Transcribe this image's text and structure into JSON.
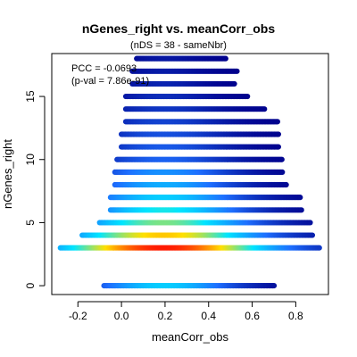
{
  "chart_data": {
    "type": "scatter",
    "title": "nGenes_right vs. meanCorr_obs",
    "subtitle": "(nDS = 38 - sameNbr)",
    "xlabel": "meanCorr_obs",
    "ylabel": "nGenes_right",
    "xlim": [
      -0.32,
      0.95
    ],
    "ylim": [
      -0.7,
      18.4
    ],
    "xticks": [
      -0.2,
      0.0,
      0.2,
      0.4,
      0.6,
      0.8
    ],
    "xtick_labels": [
      "-0.2",
      "0.0",
      "0.2",
      "0.4",
      "0.6",
      "0.8"
    ],
    "yticks": [
      0,
      5,
      10,
      15
    ],
    "ytick_labels": [
      "0",
      "5",
      "10",
      "15"
    ],
    "grid": false,
    "legend": "none",
    "color_scale": "density (blue → cyan → yellow → red)",
    "annotation_lines": [
      "PCC = -0.0693",
      "(p-val = 7.86e-91)"
    ],
    "rows": [
      {
        "y": 0,
        "x_min": -0.08,
        "x_max": 0.7,
        "peak": 0.45
      },
      {
        "y": 3,
        "x_min": -0.28,
        "x_max": 0.91,
        "peak": 1.0
      },
      {
        "y": 4,
        "x_min": -0.18,
        "x_max": 0.88,
        "peak": 0.78
      },
      {
        "y": 5,
        "x_min": -0.1,
        "x_max": 0.87,
        "peak": 0.62
      },
      {
        "y": 6,
        "x_min": -0.05,
        "x_max": 0.83,
        "peak": 0.52
      },
      {
        "y": 7,
        "x_min": -0.05,
        "x_max": 0.82,
        "peak": 0.45
      },
      {
        "y": 8,
        "x_min": -0.03,
        "x_max": 0.76,
        "peak": 0.38
      },
      {
        "y": 9,
        "x_min": -0.03,
        "x_max": 0.74,
        "peak": 0.32
      },
      {
        "y": 10,
        "x_min": -0.02,
        "x_max": 0.74,
        "peak": 0.22
      },
      {
        "y": 11,
        "x_min": 0.0,
        "x_max": 0.72,
        "peak": 0.2
      },
      {
        "y": 12,
        "x_min": 0.0,
        "x_max": 0.72,
        "peak": 0.18
      },
      {
        "y": 13,
        "x_min": 0.02,
        "x_max": 0.72,
        "peak": 0.15
      },
      {
        "y": 14,
        "x_min": 0.02,
        "x_max": 0.66,
        "peak": 0.12
      },
      {
        "y": 15,
        "x_min": 0.02,
        "x_max": 0.58,
        "peak": 0.1
      },
      {
        "y": 16,
        "x_min": 0.05,
        "x_max": 0.52,
        "peak": 0.08
      },
      {
        "y": 17,
        "x_min": 0.05,
        "x_max": 0.53,
        "peak": 0.06
      },
      {
        "y": 18,
        "x_min": 0.07,
        "x_max": 0.48,
        "peak": 0.05
      }
    ],
    "colors": {
      "low": "#00008b",
      "mid_low": "#1e6fff",
      "mid": "#00e5ff",
      "mid_high": "#ffe000",
      "high": "#ff1a00"
    }
  }
}
